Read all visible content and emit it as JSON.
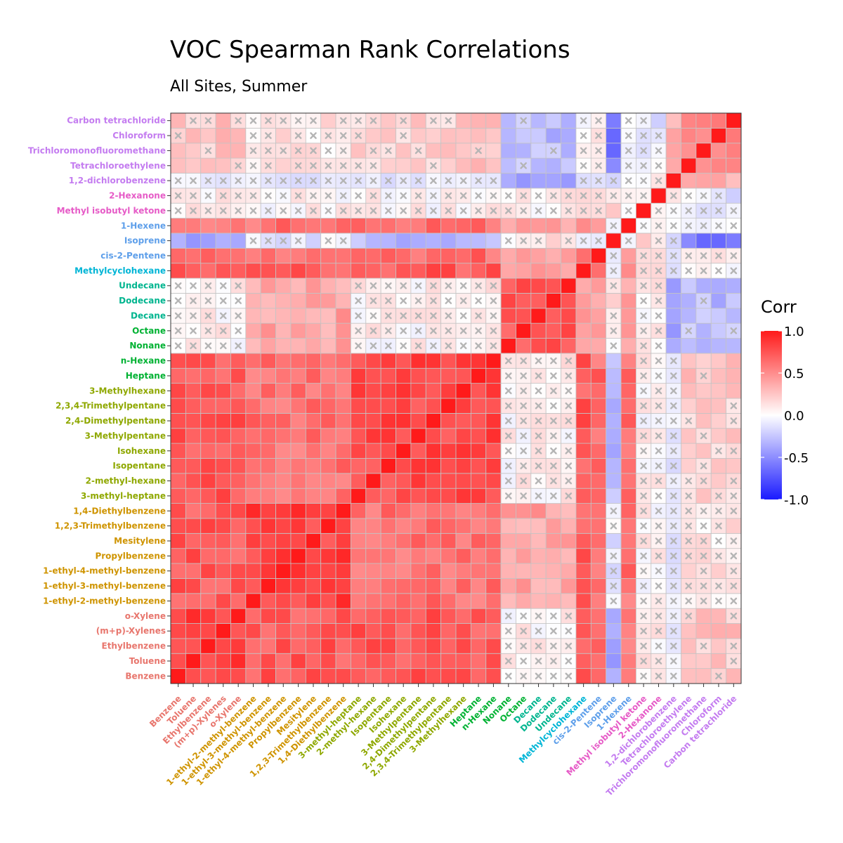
{
  "chart_data": {
    "type": "heatmap",
    "title": "VOC Spearman Rank Correlations",
    "subtitle": "All Sites, Summer",
    "legend": {
      "title": "Corr",
      "ticks": [
        "1.0",
        "0.5",
        "0.0",
        "-0.5",
        "-1.0"
      ],
      "tick_values": [
        1.0,
        0.5,
        0.0,
        -0.5,
        -1.0
      ],
      "range": [
        -1,
        1
      ],
      "placement": "right"
    },
    "color_scale": {
      "low": "#1a1aff",
      "mid": "#ffffff",
      "high": "#ff1a1a"
    },
    "not_significant_marker": "×",
    "variables": [
      {
        "name": "Benzene",
        "color": "#e8766d"
      },
      {
        "name": "Toluene",
        "color": "#e8766d"
      },
      {
        "name": "Ethylbenzene",
        "color": "#e8766d"
      },
      {
        "name": "(m+p)-Xylenes",
        "color": "#e8766d"
      },
      {
        "name": "o-Xylene",
        "color": "#e8766d"
      },
      {
        "name": "1-ethyl-2-methyl-benzene",
        "color": "#cf9400"
      },
      {
        "name": "1-ethyl-3-methyl-benzene",
        "color": "#cf9400"
      },
      {
        "name": "1-ethyl-4-methyl-benzene",
        "color": "#cf9400"
      },
      {
        "name": "Propylbenzene",
        "color": "#cf9400"
      },
      {
        "name": "Mesitylene",
        "color": "#cf9400"
      },
      {
        "name": "1,2,3-Trimethylbenzene",
        "color": "#cf9400"
      },
      {
        "name": "1,4-Diethylbenzene",
        "color": "#cf9400"
      },
      {
        "name": "3-methyl-heptane",
        "color": "#8fa800"
      },
      {
        "name": "2-methyl-hexane",
        "color": "#8fa800"
      },
      {
        "name": "Isopentane",
        "color": "#8fa800"
      },
      {
        "name": "Isohexane",
        "color": "#8fa800"
      },
      {
        "name": "3-Methylpentane",
        "color": "#8fa800"
      },
      {
        "name": "2,4-Dimethylpentane",
        "color": "#8fa800"
      },
      {
        "name": "2,3,4-Trimethylpentane",
        "color": "#8fa800"
      },
      {
        "name": "3-Methylhexane",
        "color": "#8fa800"
      },
      {
        "name": "Heptane",
        "color": "#00b233"
      },
      {
        "name": "n-Hexane",
        "color": "#00b233"
      },
      {
        "name": "Nonane",
        "color": "#00b233"
      },
      {
        "name": "Octane",
        "color": "#00b233"
      },
      {
        "name": "Decane",
        "color": "#00b58f"
      },
      {
        "name": "Dodecane",
        "color": "#00b58f"
      },
      {
        "name": "Undecane",
        "color": "#00b58f"
      },
      {
        "name": "Methylcyclohexane",
        "color": "#00b5d6"
      },
      {
        "name": "cis-2-Pentene",
        "color": "#5e9fea"
      },
      {
        "name": "Isoprene",
        "color": "#5e9fea"
      },
      {
        "name": "1-Hexene",
        "color": "#5e9fea"
      },
      {
        "name": "Methyl isobutyl ketone",
        "color": "#e65bc7"
      },
      {
        "name": "2-Hexanone",
        "color": "#e65bc7"
      },
      {
        "name": "1,2-dichlorobenzene",
        "color": "#c47cf0"
      },
      {
        "name": "Tetrachloroethylene",
        "color": "#c47cf0"
      },
      {
        "name": "Trichloromonofluoromethane",
        "color": "#c47cf0"
      },
      {
        "name": "Chloroform",
        "color": "#c47cf0"
      },
      {
        "name": "Carbon tetrachloride",
        "color": "#c47cf0"
      }
    ],
    "groups": [
      {
        "id": "arom",
        "members": [
          0,
          1,
          2,
          3,
          4
        ]
      },
      {
        "id": "c9arom",
        "members": [
          5,
          6,
          7,
          8,
          9,
          10,
          11
        ]
      },
      {
        "id": "branched",
        "members": [
          12,
          13,
          14,
          15,
          16,
          17,
          18,
          19
        ]
      },
      {
        "id": "nalk",
        "members": [
          20,
          21
        ]
      },
      {
        "id": "heavy",
        "members": [
          22,
          23,
          24,
          25,
          26
        ]
      },
      {
        "id": "mch",
        "members": [
          27
        ]
      },
      {
        "id": "alkene",
        "members": [
          28,
          30
        ]
      },
      {
        "id": "isop",
        "members": [
          29
        ]
      },
      {
        "id": "ket",
        "members": [
          31,
          32
        ]
      },
      {
        "id": "dcb",
        "members": [
          33
        ]
      },
      {
        "id": "halo",
        "members": [
          34,
          35,
          36,
          37
        ]
      }
    ],
    "group_correlations": {
      "arom|arom": 0.85,
      "arom|c9arom": 0.72,
      "arom|branched": 0.72,
      "arom|nalk": 0.72,
      "arom|heavy": 0.05,
      "arom|mch": 0.68,
      "arom|alkene": 0.62,
      "arom|isop": -0.45,
      "arom|ket": 0.05,
      "arom|dcb": -0.05,
      "arom|halo": 0.25,
      "c9arom|c9arom": 0.82,
      "c9arom|branched": 0.62,
      "c9arom|nalk": 0.62,
      "c9arom|heavy": 0.4,
      "c9arom|mch": 0.72,
      "c9arom|alkene": 0.62,
      "c9arom|isop": -0.1,
      "c9arom|ket": 0.05,
      "c9arom|dcb": -0.15,
      "c9arom|halo": 0.1,
      "branched|branched": 0.78,
      "branched|nalk": 0.82,
      "branched|heavy": 0.05,
      "branched|mch": 0.72,
      "branched|alkene": 0.62,
      "branched|isop": -0.3,
      "branched|ket": 0.05,
      "branched|dcb": -0.1,
      "branched|halo": 0.2,
      "nalk|nalk": 0.85,
      "nalk|heavy": 0.1,
      "nalk|mch": 0.75,
      "nalk|alkene": 0.65,
      "nalk|isop": -0.25,
      "nalk|ket": 0.05,
      "nalk|dcb": -0.1,
      "nalk|halo": 0.25,
      "heavy|heavy": 0.7,
      "heavy|mch": 0.45,
      "heavy|alkene": 0.4,
      "heavy|isop": 0.1,
      "heavy|ket": 0.05,
      "heavy|dcb": -0.35,
      "heavy|halo": -0.3,
      "mch|mch": 1.0,
      "mch|alkene": 0.62,
      "mch|isop": -0.1,
      "mch|ket": 0.1,
      "mch|dcb": -0.2,
      "mch|halo": 0.05,
      "alkene|alkene": 0.5,
      "alkene|isop": -0.05,
      "alkene|ket": 0.05,
      "alkene|dcb": -0.1,
      "alkene|halo": 0.05,
      "isop|isop": 1.0,
      "isop|ket": 0.2,
      "isop|dcb": -0.3,
      "isop|halo": -0.55,
      "ket|ket": 0.0,
      "ket|dcb": 0.05,
      "ket|halo": -0.1,
      "dcb|dcb": 1.0,
      "dcb|halo": 0.3,
      "halo|halo": 0.55
    }
  }
}
